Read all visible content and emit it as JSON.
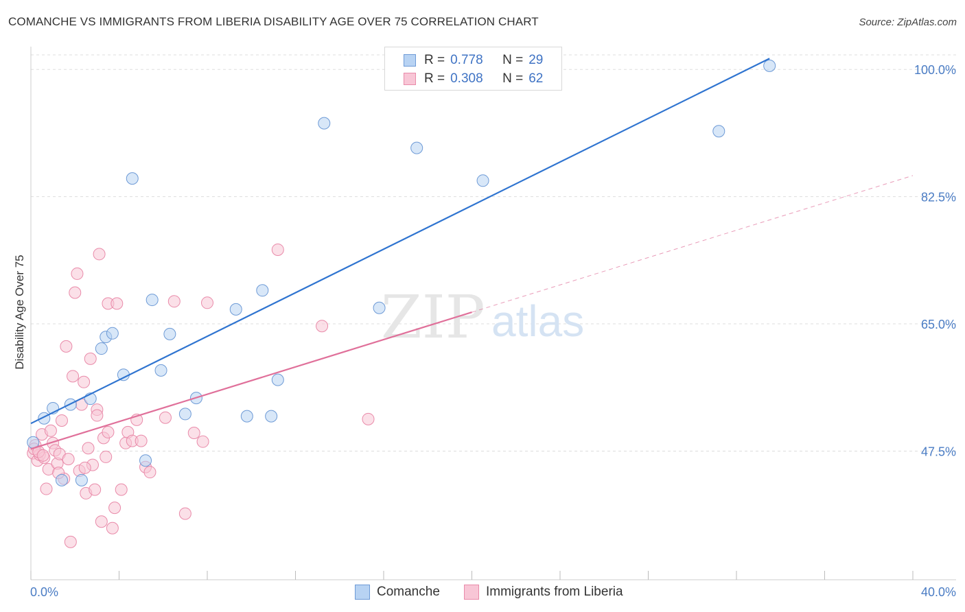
{
  "title": "COMANCHE VS IMMIGRANTS FROM LIBERIA DISABILITY AGE OVER 75 CORRELATION CHART",
  "source": "Source: ZipAtlas.com",
  "watermark": {
    "zip": "ZIP",
    "atlas": "atlas"
  },
  "legend_top": {
    "rows": [
      {
        "r_label": "R =",
        "r_value": "0.778",
        "n_label": "N =",
        "n_value": "29"
      },
      {
        "r_label": "R =",
        "r_value": "0.308",
        "n_label": "N =",
        "n_value": "62"
      }
    ]
  },
  "legend_bottom": {
    "series1": "Comanche",
    "series2": "Immigrants from Liberia"
  },
  "colors": {
    "comanche_fill": "#b8d3f3",
    "comanche_stroke": "#6d9ad6",
    "comanche_line": "#2f74d0",
    "liberia_fill": "#f8c6d6",
    "liberia_stroke": "#e98aa9",
    "liberia_line": "#e0709a",
    "tick_label": "#4a7cc4",
    "grid": "#dddddd"
  },
  "chart_data": {
    "type": "scatter",
    "title": "COMANCHE VS IMMIGRANTS FROM LIBERIA DISABILITY AGE OVER 75 CORRELATION CHART",
    "xlabel": "",
    "ylabel": "Disability Age Over 75",
    "xlim": [
      0,
      40
    ],
    "ylim": [
      29.8,
      102
    ],
    "x_tick_labels": [
      "0.0%",
      "40.0%"
    ],
    "y_ticks": [
      47.5,
      65.0,
      82.5,
      100.0
    ],
    "y_tick_labels": [
      "47.5%",
      "65.0%",
      "82.5%",
      "100.0%"
    ],
    "grid": true,
    "series": [
      {
        "name": "Comanche",
        "R": 0.778,
        "N": 29,
        "trend": {
          "x": [
            0,
            33.5
          ],
          "y": [
            51.3,
            101.5
          ],
          "style": "solid"
        },
        "points": [
          {
            "x": 0.1,
            "y": 48.7
          },
          {
            "x": 0.6,
            "y": 52.0
          },
          {
            "x": 1.0,
            "y": 53.4
          },
          {
            "x": 1.4,
            "y": 43.5
          },
          {
            "x": 1.8,
            "y": 53.9
          },
          {
            "x": 2.3,
            "y": 43.5
          },
          {
            "x": 2.7,
            "y": 54.7
          },
          {
            "x": 3.2,
            "y": 61.6
          },
          {
            "x": 3.4,
            "y": 63.2
          },
          {
            "x": 3.7,
            "y": 63.7
          },
          {
            "x": 4.2,
            "y": 58.0
          },
          {
            "x": 4.6,
            "y": 85.0
          },
          {
            "x": 5.2,
            "y": 46.2
          },
          {
            "x": 5.5,
            "y": 68.3
          },
          {
            "x": 5.9,
            "y": 58.6
          },
          {
            "x": 6.3,
            "y": 63.6
          },
          {
            "x": 7.5,
            "y": 54.8
          },
          {
            "x": 7.0,
            "y": 52.6
          },
          {
            "x": 9.3,
            "y": 67.0
          },
          {
            "x": 9.8,
            "y": 52.3
          },
          {
            "x": 10.5,
            "y": 69.6
          },
          {
            "x": 10.9,
            "y": 52.3
          },
          {
            "x": 11.2,
            "y": 57.3
          },
          {
            "x": 13.3,
            "y": 92.6
          },
          {
            "x": 15.8,
            "y": 67.2
          },
          {
            "x": 17.5,
            "y": 89.2
          },
          {
            "x": 20.5,
            "y": 84.7
          },
          {
            "x": 31.2,
            "y": 91.5
          },
          {
            "x": 33.5,
            "y": 100.5
          }
        ]
      },
      {
        "name": "Immigrants from Liberia",
        "R": 0.308,
        "N": 62,
        "trend": {
          "x": [
            0,
            20
          ],
          "y": [
            47.8,
            66.6
          ],
          "style": "solid",
          "dashed_extension": {
            "x": [
              20,
              40
            ],
            "y": [
              66.6,
              85.4
            ]
          }
        },
        "points": [
          {
            "x": 0.1,
            "y": 47.2
          },
          {
            "x": 0.2,
            "y": 48.3
          },
          {
            "x": 0.3,
            "y": 46.2
          },
          {
            "x": 0.4,
            "y": 47.0
          },
          {
            "x": 0.5,
            "y": 49.8
          },
          {
            "x": 0.6,
            "y": 46.6
          },
          {
            "x": 0.7,
            "y": 42.3
          },
          {
            "x": 0.8,
            "y": 45.0
          },
          {
            "x": 0.9,
            "y": 50.3
          },
          {
            "x": 1.0,
            "y": 48.6
          },
          {
            "x": 1.1,
            "y": 47.6
          },
          {
            "x": 1.2,
            "y": 45.8
          },
          {
            "x": 1.3,
            "y": 47.1
          },
          {
            "x": 1.4,
            "y": 51.7
          },
          {
            "x": 1.5,
            "y": 43.7
          },
          {
            "x": 1.6,
            "y": 61.9
          },
          {
            "x": 1.7,
            "y": 46.4
          },
          {
            "x": 1.8,
            "y": 35.0
          },
          {
            "x": 1.9,
            "y": 57.8
          },
          {
            "x": 2.0,
            "y": 69.3
          },
          {
            "x": 2.1,
            "y": 71.9
          },
          {
            "x": 2.2,
            "y": 44.8
          },
          {
            "x": 2.3,
            "y": 53.9
          },
          {
            "x": 2.4,
            "y": 57.0
          },
          {
            "x": 2.5,
            "y": 41.7
          },
          {
            "x": 2.6,
            "y": 47.9
          },
          {
            "x": 2.7,
            "y": 60.2
          },
          {
            "x": 2.8,
            "y": 45.6
          },
          {
            "x": 2.9,
            "y": 42.2
          },
          {
            "x": 3.0,
            "y": 53.2
          },
          {
            "x": 3.0,
            "y": 52.4
          },
          {
            "x": 3.1,
            "y": 74.6
          },
          {
            "x": 3.2,
            "y": 37.8
          },
          {
            "x": 3.3,
            "y": 49.3
          },
          {
            "x": 3.4,
            "y": 46.7
          },
          {
            "x": 3.5,
            "y": 67.8
          },
          {
            "x": 3.5,
            "y": 50.1
          },
          {
            "x": 3.7,
            "y": 36.9
          },
          {
            "x": 3.8,
            "y": 39.7
          },
          {
            "x": 3.9,
            "y": 67.8
          },
          {
            "x": 4.1,
            "y": 42.2
          },
          {
            "x": 4.3,
            "y": 48.6
          },
          {
            "x": 4.4,
            "y": 50.1
          },
          {
            "x": 4.6,
            "y": 48.9
          },
          {
            "x": 4.8,
            "y": 51.8
          },
          {
            "x": 5.0,
            "y": 48.9
          },
          {
            "x": 5.2,
            "y": 45.3
          },
          {
            "x": 5.4,
            "y": 44.6
          },
          {
            "x": 6.1,
            "y": 52.1
          },
          {
            "x": 6.5,
            "y": 68.1
          },
          {
            "x": 7.0,
            "y": 38.9
          },
          {
            "x": 7.4,
            "y": 50.0
          },
          {
            "x": 7.8,
            "y": 48.8
          },
          {
            "x": 8.0,
            "y": 67.9
          },
          {
            "x": 11.2,
            "y": 75.2
          },
          {
            "x": 13.2,
            "y": 64.7
          },
          {
            "x": 15.3,
            "y": 51.9
          },
          {
            "x": 0.15,
            "y": 47.8
          },
          {
            "x": 0.35,
            "y": 47.4
          },
          {
            "x": 0.55,
            "y": 46.9
          },
          {
            "x": 1.25,
            "y": 44.5
          },
          {
            "x": 2.45,
            "y": 45.2
          }
        ]
      }
    ]
  }
}
